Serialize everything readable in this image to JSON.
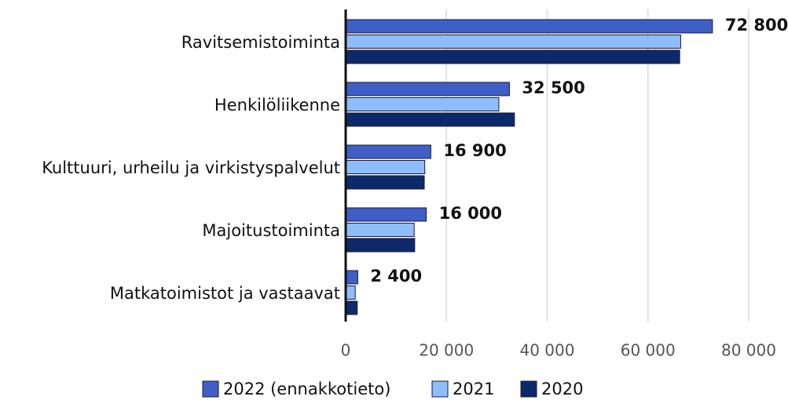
{
  "chart_data": {
    "type": "bar",
    "orientation": "horizontal",
    "categories": [
      "Ravitsemistoiminta",
      "Henkilöliikenne",
      "Kulttuuri, urheilu ja virkistyspalvelut",
      "Majoitustoiminta",
      "Matkatoimistot ja vastaavat"
    ],
    "series": [
      {
        "name": "2022 (ennakkotieto)",
        "color": "#3f5fc6",
        "values": [
          72800,
          32500,
          16900,
          16000,
          2400
        ],
        "value_labels": [
          "72 800",
          "32 500",
          "16 900",
          "16 000",
          "2 400"
        ]
      },
      {
        "name": "2021",
        "color": "#8dbdfb",
        "values": [
          66500,
          30400,
          15700,
          13600,
          1900
        ]
      },
      {
        "name": "2020",
        "color": "#0c2a6a",
        "values": [
          66300,
          33500,
          15600,
          13700,
          2300
        ]
      }
    ],
    "xlim": [
      0,
      80000
    ],
    "xticks": [
      0,
      {
        "value": 20000,
        "label": "20 000"
      },
      {
        "value": 40000,
        "label": "40 000"
      },
      {
        "value": 60000,
        "label": "60 000"
      },
      {
        "value": 80000,
        "label": "80 000"
      }
    ],
    "grid": true,
    "legend": "bottom"
  }
}
